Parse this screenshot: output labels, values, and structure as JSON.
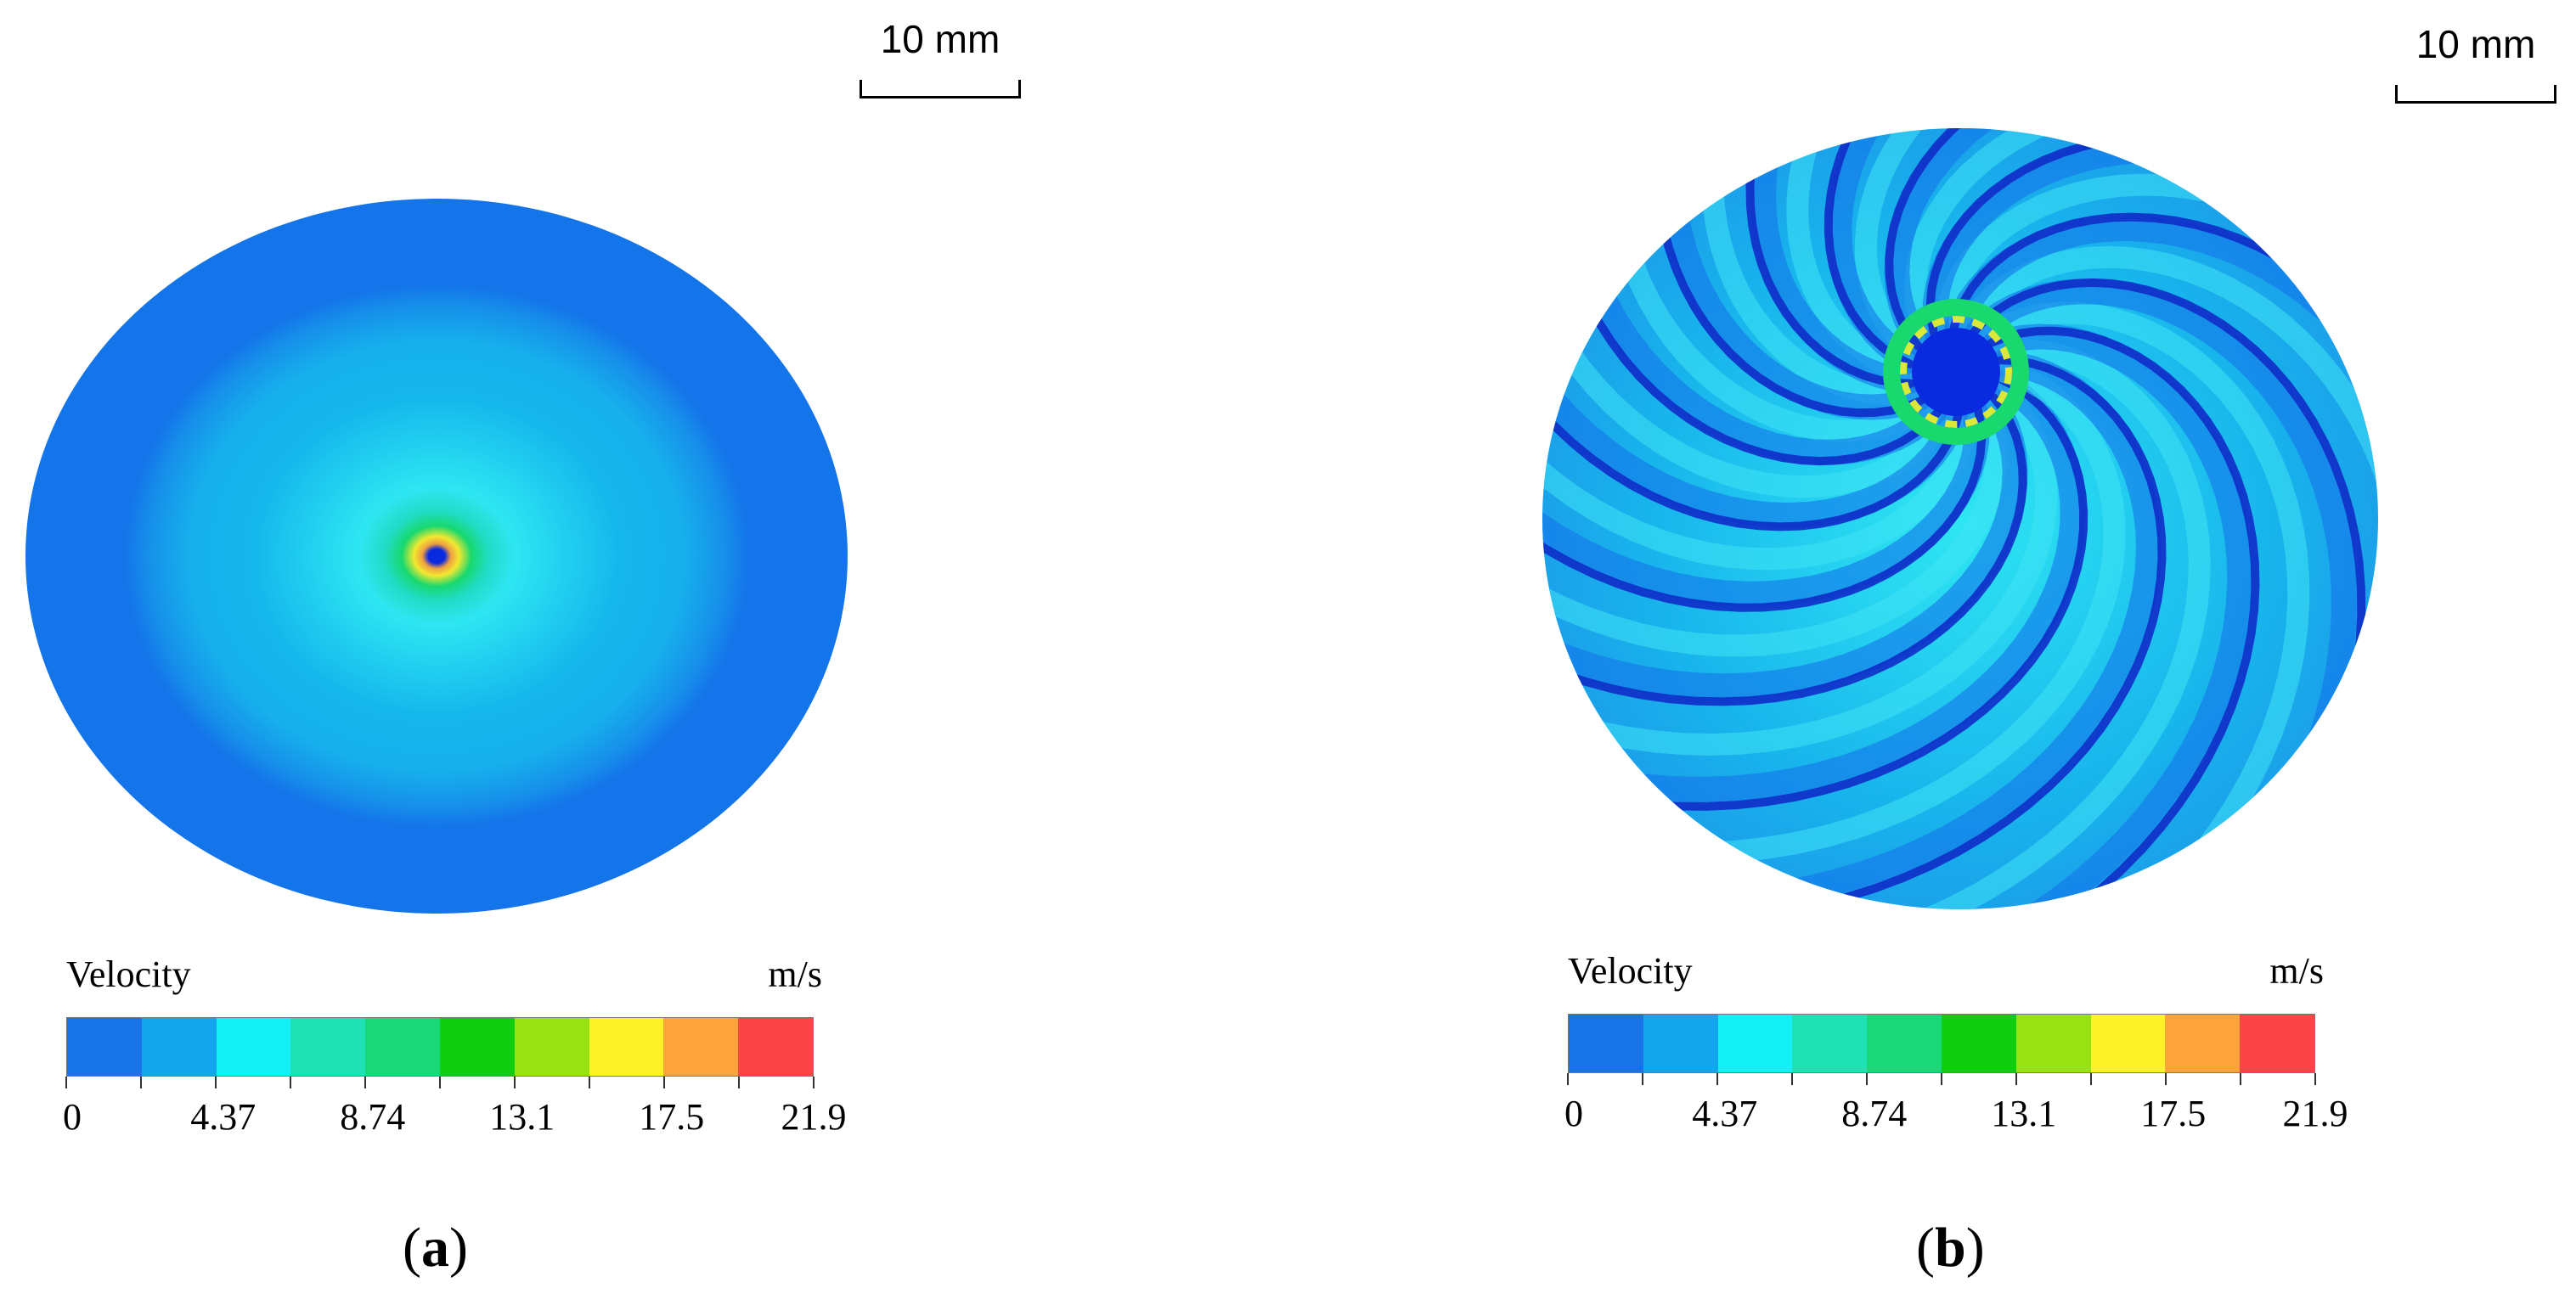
{
  "legend_colors": [
    "#1872e8",
    "#12a6ec",
    "#14f1f4",
    "#1ee2b2",
    "#18d87a",
    "#10cd10",
    "#98e214",
    "#fcf228",
    "#fca43a",
    "#fc4446"
  ],
  "field_colors": {
    "background_blue": "#1474ea",
    "light_ring": "#16b8ec",
    "cyan": "#2ee6f2",
    "green": "#18d86e",
    "yellow": "#f2e830",
    "orange": "#f0a040",
    "dark_blue": "#0a2ae0",
    "streak_dark": "#0f2cc8"
  },
  "panels": [
    {
      "id": "a",
      "caption_open": "(",
      "caption_letter": "a",
      "caption_close": ")",
      "scale_label": "10 mm",
      "legend": {
        "title": "Velocity",
        "unit": "m/s",
        "min": 0,
        "max": 21.9,
        "tick_labels": [
          "0",
          "4.37",
          "8.74",
          "13.1",
          "17.5",
          "21.9"
        ]
      }
    },
    {
      "id": "b",
      "caption_open": "(",
      "caption_letter": "b",
      "caption_close": ")",
      "scale_label": "10 mm",
      "legend": {
        "title": "Velocity",
        "unit": "m/s",
        "min": 0,
        "max": 21.9,
        "tick_labels": [
          "0",
          "4.37",
          "8.74",
          "13.1",
          "17.5",
          "21.9"
        ]
      }
    }
  ]
}
